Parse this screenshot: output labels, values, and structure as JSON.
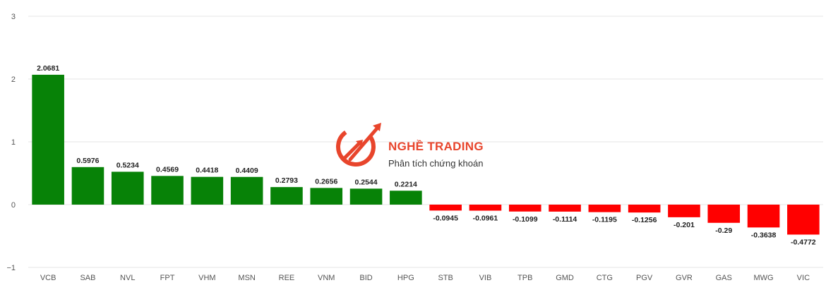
{
  "colors": {
    "positive": "#078207",
    "negative": "#ff0000",
    "grid": "#e6e6e6",
    "axis_text": "#555555",
    "label_text": "#222222",
    "brand": "#e8452c"
  },
  "watermark": {
    "name": "NGHỀ TRADING",
    "tagline": "Phân tích chứng khoán",
    "icon": "trading-arrows-logo-icon"
  },
  "chart_data": {
    "type": "bar",
    "title": "",
    "xlabel": "",
    "ylabel": "",
    "ylim": [
      -1,
      3
    ],
    "yticks": [
      -1,
      0,
      1,
      2,
      3
    ],
    "grid": true,
    "categories": [
      "VCB",
      "SAB",
      "NVL",
      "FPT",
      "VHM",
      "MSN",
      "REE",
      "VNM",
      "BID",
      "HPG",
      "STB",
      "VIB",
      "TPB",
      "GMD",
      "CTG",
      "PGV",
      "GVR",
      "GAS",
      "MWG",
      "VIC"
    ],
    "values": [
      2.0681,
      0.5976,
      0.5234,
      0.4569,
      0.4418,
      0.4409,
      0.2793,
      0.2656,
      0.2544,
      0.2214,
      -0.0945,
      -0.0961,
      -0.1099,
      -0.1114,
      -0.1195,
      -0.1256,
      -0.201,
      -0.29,
      -0.3638,
      -0.4772
    ],
    "data_labels": [
      "2.0681",
      "0.5976",
      "0.5234",
      "0.4569",
      "0.4418",
      "0.4409",
      "0.2793",
      "0.2656",
      "0.2544",
      "0.2214",
      "-0.0945",
      "-0.0961",
      "-0.1099",
      "-0.1114",
      "-0.1195",
      "-0.1256",
      "-0.201",
      "-0.29",
      "-0.3638",
      "-0.4772"
    ]
  }
}
